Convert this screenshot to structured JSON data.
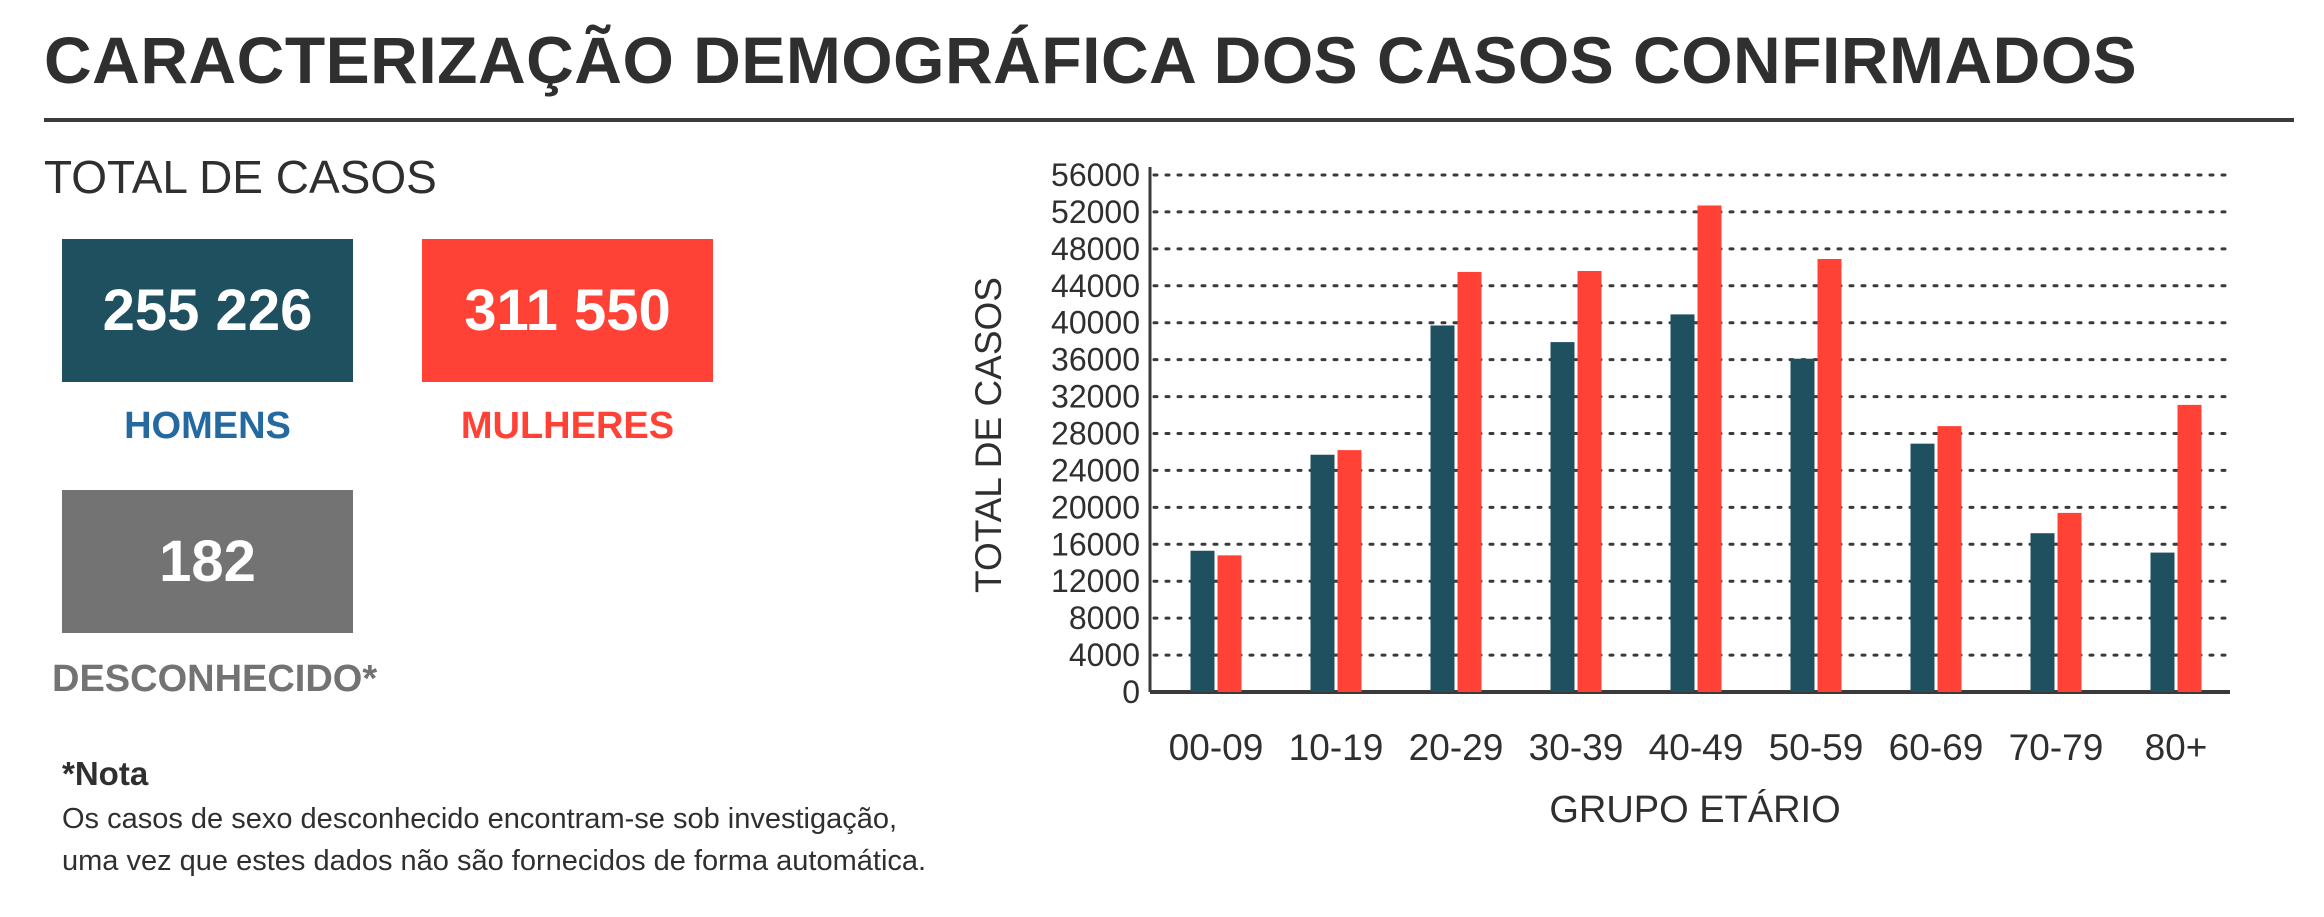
{
  "header": {
    "title": "CARACTERIZAÇÃO DEMOGRÁFICA DOS CASOS CONFIRMADOS"
  },
  "summary": {
    "section_title": "TOTAL DE CASOS",
    "men": {
      "value": "255 226",
      "label": "HOMENS",
      "box_color": "#1f5060",
      "label_color": "#2469a0"
    },
    "women": {
      "value": "311 550",
      "label": "MULHERES",
      "box_color": "#ff4136",
      "label_color": "#ff4136"
    },
    "unknown": {
      "value": "182",
      "label": "DESCONHECIDO*",
      "box_color": "#737373",
      "label_color": "#737373"
    }
  },
  "note": {
    "title": "*Nota",
    "lines": [
      "Os casos de sexo desconhecido encontram-se sob investigação,",
      "uma vez que estes dados não são fornecidos de forma automática."
    ]
  },
  "chart_data": {
    "type": "bar",
    "title": "",
    "xlabel": "GRUPO ETÁRIO",
    "ylabel": "TOTAL DE CASOS",
    "categories": [
      "00-09",
      "10-19",
      "20-29",
      "30-39",
      "40-49",
      "50-59",
      "60-69",
      "70-79",
      "80+"
    ],
    "series": [
      {
        "values": [
          15300,
          25700,
          39700,
          37900,
          40900,
          36100,
          26900,
          17200,
          15100
        ],
        "color": "#1f5060"
      },
      {
        "values": [
          14800,
          26200,
          45500,
          45600,
          52700,
          46900,
          28800,
          19400,
          31100
        ],
        "color": "#ff4136"
      }
    ],
    "ylim": [
      0,
      56000
    ],
    "yticks": [
      "0",
      "4000",
      "8000",
      "12000",
      "16000",
      "20000",
      "24000",
      "28000",
      "32000",
      "36000",
      "40000",
      "44000",
      "48000",
      "52000",
      "56000"
    ],
    "grid": true,
    "legend": "none"
  }
}
